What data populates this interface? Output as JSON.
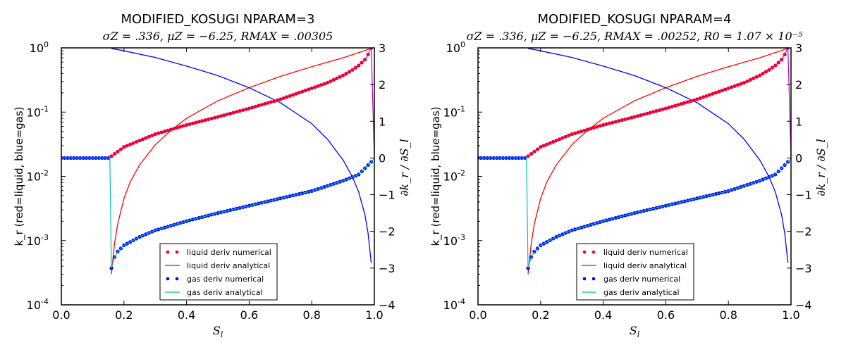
{
  "chart_data": [
    {
      "type": "line",
      "title": "MODIFIED_KOSUGI NPARAM=3",
      "subtitle": "σZ = .336, μZ = −6.25, RMAX = .00305",
      "xlabel": "S_l",
      "ylabel_left": "k_r (red=liquid, blue=gas)",
      "ylabel_right": "∂k_r / ∂S_l",
      "xlim": [
        0.0,
        1.0
      ],
      "ylim_left_log": [
        0.0001,
        1
      ],
      "ylim_right": [
        -4,
        3
      ],
      "x_ticks": [
        "0.0",
        "0.2",
        "0.4",
        "0.6",
        "0.8",
        "1.0"
      ],
      "y_left_ticks": [
        {
          "base": "10",
          "exp": "0"
        },
        {
          "base": "10",
          "exp": "-1"
        },
        {
          "base": "10",
          "exp": "-2"
        },
        {
          "base": "10",
          "exp": "-3"
        },
        {
          "base": "10",
          "exp": "-4"
        }
      ],
      "y_right_ticks": [
        "3",
        "2",
        "1",
        "0",
        "−1",
        "−2",
        "−3",
        "−4"
      ],
      "grid": false,
      "legend_position": "lower-center",
      "legend": [
        {
          "label": "liquid deriv numerical",
          "style": "dots",
          "color": "#ff0000"
        },
        {
          "label": "liquid deriv analytical",
          "style": "line",
          "color": "#bf00bf"
        },
        {
          "label": "gas deriv numerical",
          "style": "dots",
          "color": "#0000ff"
        },
        {
          "label": "gas deriv analytical",
          "style": "line",
          "color": "#00bfbf"
        }
      ],
      "series": [
        {
          "name": "liquid kr",
          "axis": "left",
          "color": "#ff0000",
          "x": [
            0.16,
            0.17,
            0.18,
            0.2,
            0.22,
            0.25,
            0.3,
            0.35,
            0.4,
            0.5,
            0.6,
            0.7,
            0.8,
            0.9,
            0.99
          ],
          "y": [
            0.0003,
            0.0009,
            0.0018,
            0.0045,
            0.0082,
            0.015,
            0.031,
            0.052,
            0.08,
            0.15,
            0.24,
            0.36,
            0.51,
            0.7,
            0.98
          ]
        },
        {
          "name": "gas kr",
          "axis": "left",
          "color": "#0000ff",
          "x": [
            0.16,
            0.2,
            0.3,
            0.4,
            0.5,
            0.6,
            0.7,
            0.8,
            0.85,
            0.9,
            0.93,
            0.95,
            0.97,
            0.98,
            0.99
          ],
          "y": [
            0.98,
            0.9,
            0.71,
            0.52,
            0.37,
            0.24,
            0.14,
            0.066,
            0.038,
            0.018,
            0.0098,
            0.0057,
            0.0025,
            0.0013,
            0.00045
          ]
        },
        {
          "name": "liquid deriv",
          "axis": "right",
          "color": "#bf00bf",
          "x": [
            0.0,
            0.155,
            0.16,
            0.2,
            0.3,
            0.4,
            0.5,
            0.6,
            0.7,
            0.8,
            0.85,
            0.9,
            0.93,
            0.95,
            0.97,
            0.98,
            0.99,
            1.0
          ],
          "y": [
            0.0,
            0.0,
            0.05,
            0.3,
            0.65,
            0.9,
            1.12,
            1.35,
            1.6,
            1.9,
            2.05,
            2.25,
            2.4,
            2.52,
            2.68,
            2.82,
            3.0,
            0.0
          ]
        },
        {
          "name": "gas deriv",
          "axis": "right",
          "color": "#00bfbf",
          "x": [
            0.0,
            0.155,
            0.16,
            0.17,
            0.18,
            0.2,
            0.25,
            0.3,
            0.4,
            0.5,
            0.6,
            0.7,
            0.8,
            0.9,
            0.95,
            1.0
          ],
          "y": [
            0.0,
            0.0,
            -3.0,
            -2.7,
            -2.55,
            -2.38,
            -2.15,
            -1.97,
            -1.72,
            -1.5,
            -1.3,
            -1.1,
            -0.9,
            -0.62,
            -0.45,
            -0.02
          ]
        }
      ]
    },
    {
      "type": "line",
      "title": "MODIFIED_KOSUGI NPARAM=4",
      "subtitle": "σZ = .336, μZ = −6.25, RMAX = .00252, R0 = 1.07 × 10⁻⁵",
      "xlabel": "S_l",
      "ylabel_left": "k_r (red=liquid, blue=gas)",
      "ylabel_right": "∂k_r / ∂S_l",
      "xlim": [
        0.0,
        1.0
      ],
      "ylim_left_log": [
        0.0001,
        1
      ],
      "ylim_right": [
        -4,
        3
      ],
      "x_ticks": [
        "0.0",
        "0.2",
        "0.4",
        "0.6",
        "0.8",
        "1.0"
      ],
      "y_left_ticks": [
        {
          "base": "10",
          "exp": "0"
        },
        {
          "base": "10",
          "exp": "-1"
        },
        {
          "base": "10",
          "exp": "-2"
        },
        {
          "base": "10",
          "exp": "-3"
        },
        {
          "base": "10",
          "exp": "-4"
        }
      ],
      "y_right_ticks": [
        "3",
        "2",
        "1",
        "0",
        "−1",
        "−2",
        "−3",
        "−4"
      ],
      "grid": false,
      "legend_position": "lower-center",
      "legend": [
        {
          "label": "liquid deriv numerical",
          "style": "dots",
          "color": "#ff0000"
        },
        {
          "label": "liquid deriv analytical",
          "style": "line",
          "color": "#bf00bf"
        },
        {
          "label": "gas deriv numerical",
          "style": "dots",
          "color": "#0000ff"
        },
        {
          "label": "gas deriv analytical",
          "style": "line",
          "color": "#00bfbf"
        }
      ],
      "series": [
        {
          "name": "liquid kr",
          "axis": "left",
          "color": "#ff0000",
          "x": [
            0.16,
            0.17,
            0.18,
            0.2,
            0.22,
            0.25,
            0.3,
            0.35,
            0.4,
            0.5,
            0.6,
            0.7,
            0.8,
            0.9,
            0.99
          ],
          "y": [
            0.0003,
            0.0009,
            0.0018,
            0.0045,
            0.0082,
            0.015,
            0.031,
            0.052,
            0.08,
            0.15,
            0.24,
            0.36,
            0.51,
            0.7,
            0.98
          ]
        },
        {
          "name": "gas kr",
          "axis": "left",
          "color": "#0000ff",
          "x": [
            0.16,
            0.2,
            0.3,
            0.4,
            0.5,
            0.6,
            0.7,
            0.8,
            0.85,
            0.9,
            0.93,
            0.95,
            0.97,
            0.98,
            0.99
          ],
          "y": [
            0.98,
            0.9,
            0.71,
            0.52,
            0.37,
            0.24,
            0.14,
            0.066,
            0.038,
            0.018,
            0.0098,
            0.0057,
            0.0025,
            0.0013,
            0.00045
          ]
        },
        {
          "name": "liquid deriv",
          "axis": "right",
          "color": "#bf00bf",
          "x": [
            0.0,
            0.155,
            0.16,
            0.2,
            0.3,
            0.4,
            0.5,
            0.6,
            0.7,
            0.8,
            0.85,
            0.9,
            0.93,
            0.95,
            0.97,
            0.98,
            0.99,
            1.0
          ],
          "y": [
            0.0,
            0.0,
            0.05,
            0.3,
            0.65,
            0.9,
            1.12,
            1.35,
            1.6,
            1.9,
            2.05,
            2.25,
            2.4,
            2.52,
            2.68,
            2.82,
            3.0,
            0.0
          ]
        },
        {
          "name": "gas deriv",
          "axis": "right",
          "color": "#00bfbf",
          "x": [
            0.0,
            0.155,
            0.16,
            0.17,
            0.18,
            0.2,
            0.25,
            0.3,
            0.4,
            0.5,
            0.6,
            0.7,
            0.8,
            0.9,
            0.95,
            1.0
          ],
          "y": [
            0.0,
            0.0,
            -3.0,
            -2.7,
            -2.55,
            -2.38,
            -2.15,
            -1.97,
            -1.72,
            -1.5,
            -1.3,
            -1.1,
            -0.9,
            -0.62,
            -0.45,
            -0.02
          ]
        }
      ]
    }
  ]
}
